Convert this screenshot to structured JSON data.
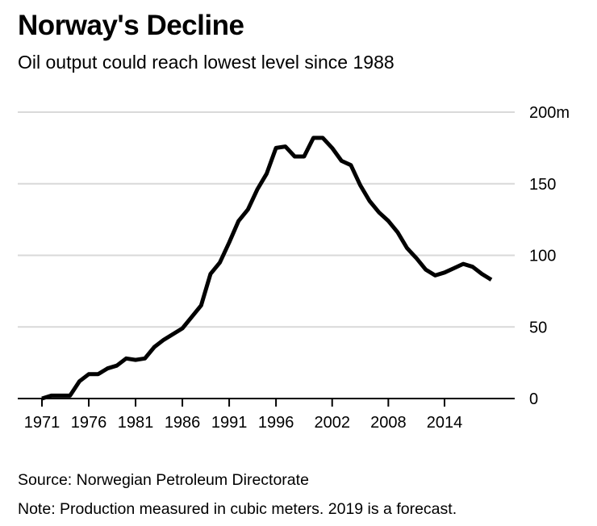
{
  "header": {
    "title": "Norway's Decline",
    "subtitle": "Oil output could reach lowest level since 1988"
  },
  "footer": {
    "source": "Source: Norwegian Petroleum Directorate",
    "note": "Note: Production measured in cubic meters. 2019 is a forecast."
  },
  "chart_data": {
    "type": "line",
    "title": "Norway's Decline",
    "subtitle": "Oil output could reach lowest level since 1988",
    "xlabel": "",
    "ylabel": "",
    "y_axis_position": "right",
    "grid": true,
    "legend": "none",
    "xlim": [
      1971,
      2019
    ],
    "ylim": [
      0,
      200
    ],
    "x_ticks": [
      1971,
      1976,
      1981,
      1986,
      1991,
      1996,
      2002,
      2008,
      2014
    ],
    "y_ticks": [
      0,
      50,
      100,
      150,
      200
    ],
    "y_tick_labels": [
      "0",
      "50",
      "100",
      "150",
      "200m"
    ],
    "line_color": "#000000",
    "grid_color": "#d9d9d9",
    "series": [
      {
        "x": [
          1971,
          1972,
          1973,
          1974,
          1975,
          1976,
          1977,
          1978,
          1979,
          1980,
          1981,
          1982,
          1983,
          1984,
          1985,
          1986,
          1987,
          1988,
          1989,
          1990,
          1991,
          1992,
          1993,
          1994,
          1995,
          1996,
          1997,
          1998,
          1999,
          2000,
          2001,
          2002,
          2003,
          2004,
          2005,
          2006,
          2007,
          2008,
          2009,
          2010,
          2011,
          2012,
          2013,
          2014,
          2015,
          2016,
          2017,
          2018,
          2019
        ],
        "values": [
          0,
          2,
          2,
          2,
          12,
          17,
          17,
          21,
          23,
          28,
          27,
          28,
          36,
          41,
          45,
          49,
          57,
          65,
          87,
          95,
          109,
          124,
          132,
          146,
          157,
          175,
          176,
          169,
          169,
          182,
          182,
          175,
          166,
          163,
          149,
          138,
          130,
          124,
          116,
          105,
          98,
          90,
          86,
          88,
          91,
          94,
          92,
          87,
          83
        ]
      }
    ]
  }
}
